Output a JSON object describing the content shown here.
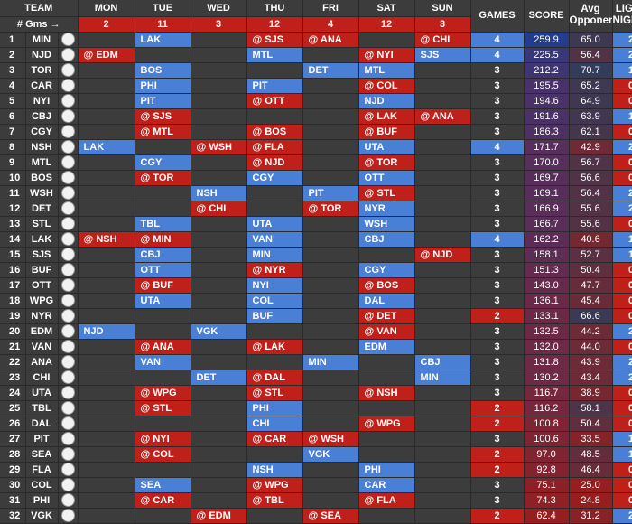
{
  "header": {
    "team_label": "TEAM",
    "gms_label": "# Gms →",
    "days": [
      {
        "label": "MON",
        "count": "2"
      },
      {
        "label": "TUE",
        "count": "11"
      },
      {
        "label": "WED",
        "count": "3"
      },
      {
        "label": "THU",
        "count": "12"
      },
      {
        "label": "FRI",
        "count": "4"
      },
      {
        "label": "SAT",
        "count": "12"
      },
      {
        "label": "SUN",
        "count": "3"
      }
    ],
    "games_label": "GAMES",
    "score_label": "SCORE",
    "avg_label_1": "Avg",
    "avg_label_2": "Opponent",
    "light_label_1": "LIGHT",
    "light_label_2": "NIGHTS"
  },
  "rows": [
    {
      "rank": "1",
      "team": "MIN",
      "games": [
        "",
        "LAK",
        "",
        "@ SJS",
        "@ ANA",
        "",
        "@ CHI"
      ],
      "gcount": "4",
      "score": "259.9",
      "opp": "65.0",
      "light": "2"
    },
    {
      "rank": "2",
      "team": "NJD",
      "games": [
        "@ EDM",
        "",
        "",
        "MTL",
        "",
        "@ NYI",
        "SJS"
      ],
      "gcount": "4",
      "score": "225.5",
      "opp": "56.4",
      "light": "2"
    },
    {
      "rank": "3",
      "team": "TOR",
      "games": [
        "",
        "BOS",
        "",
        "",
        "DET",
        "MTL",
        ""
      ],
      "gcount": "3",
      "score": "212.2",
      "opp": "70.7",
      "light": "1"
    },
    {
      "rank": "4",
      "team": "CAR",
      "games": [
        "",
        "PHI",
        "",
        "PIT",
        "",
        "@ COL",
        ""
      ],
      "gcount": "3",
      "score": "195.5",
      "opp": "65.2",
      "light": "0"
    },
    {
      "rank": "5",
      "team": "NYI",
      "games": [
        "",
        "PIT",
        "",
        "@ OTT",
        "",
        "NJD",
        ""
      ],
      "gcount": "3",
      "score": "194.6",
      "opp": "64.9",
      "light": "0"
    },
    {
      "rank": "6",
      "team": "CBJ",
      "games": [
        "",
        "@ SJS",
        "",
        "",
        "",
        "@ LAK",
        "@ ANA"
      ],
      "gcount": "3",
      "score": "191.6",
      "opp": "63.9",
      "light": "1"
    },
    {
      "rank": "7",
      "team": "CGY",
      "games": [
        "",
        "@ MTL",
        "",
        "@ BOS",
        "",
        "@ BUF",
        ""
      ],
      "gcount": "3",
      "score": "186.3",
      "opp": "62.1",
      "light": "0"
    },
    {
      "rank": "8",
      "team": "NSH",
      "games": [
        "LAK",
        "",
        "@ WSH",
        "@ FLA",
        "",
        "UTA",
        ""
      ],
      "gcount": "4",
      "score": "171.7",
      "opp": "42.9",
      "light": "2"
    },
    {
      "rank": "9",
      "team": "MTL",
      "games": [
        "",
        "CGY",
        "",
        "@ NJD",
        "",
        "@ TOR",
        ""
      ],
      "gcount": "3",
      "score": "170.0",
      "opp": "56.7",
      "light": "0"
    },
    {
      "rank": "10",
      "team": "BOS",
      "games": [
        "",
        "@ TOR",
        "",
        "CGY",
        "",
        "OTT",
        ""
      ],
      "gcount": "3",
      "score": "169.7",
      "opp": "56.6",
      "light": "0"
    },
    {
      "rank": "11",
      "team": "WSH",
      "games": [
        "",
        "",
        "NSH",
        "",
        "PIT",
        "@ STL",
        ""
      ],
      "gcount": "3",
      "score": "169.1",
      "opp": "56.4",
      "light": "2"
    },
    {
      "rank": "12",
      "team": "DET",
      "games": [
        "",
        "",
        "@ CHI",
        "",
        "@ TOR",
        "NYR",
        ""
      ],
      "gcount": "3",
      "score": "166.9",
      "opp": "55.6",
      "light": "2"
    },
    {
      "rank": "13",
      "team": "STL",
      "games": [
        "",
        "TBL",
        "",
        "UTA",
        "",
        "WSH",
        ""
      ],
      "gcount": "3",
      "score": "166.7",
      "opp": "55.6",
      "light": "0"
    },
    {
      "rank": "14",
      "team": "LAK",
      "games": [
        "@ NSH",
        "@ MIN",
        "",
        "VAN",
        "",
        "CBJ",
        ""
      ],
      "gcount": "4",
      "score": "162.2",
      "opp": "40.6",
      "light": "1"
    },
    {
      "rank": "15",
      "team": "SJS",
      "games": [
        "",
        "CBJ",
        "",
        "MIN",
        "",
        "",
        "@ NJD"
      ],
      "gcount": "3",
      "score": "158.1",
      "opp": "52.7",
      "light": "1"
    },
    {
      "rank": "16",
      "team": "BUF",
      "games": [
        "",
        "OTT",
        "",
        "@ NYR",
        "",
        "CGY",
        ""
      ],
      "gcount": "3",
      "score": "151.3",
      "opp": "50.4",
      "light": "0"
    },
    {
      "rank": "17",
      "team": "OTT",
      "games": [
        "",
        "@ BUF",
        "",
        "NYI",
        "",
        "@ BOS",
        ""
      ],
      "gcount": "3",
      "score": "143.0",
      "opp": "47.7",
      "light": "0"
    },
    {
      "rank": "18",
      "team": "WPG",
      "games": [
        "",
        "UTA",
        "",
        "COL",
        "",
        "DAL",
        ""
      ],
      "gcount": "3",
      "score": "136.1",
      "opp": "45.4",
      "light": "0"
    },
    {
      "rank": "19",
      "team": "NYR",
      "games": [
        "",
        "",
        "",
        "BUF",
        "",
        "@ DET",
        ""
      ],
      "gcount": "2",
      "score": "133.1",
      "opp": "66.6",
      "light": "0"
    },
    {
      "rank": "20",
      "team": "EDM",
      "games": [
        "NJD",
        "",
        "VGK",
        "",
        "",
        "@ VAN",
        ""
      ],
      "gcount": "3",
      "score": "132.5",
      "opp": "44.2",
      "light": "2"
    },
    {
      "rank": "21",
      "team": "VAN",
      "games": [
        "",
        "@ ANA",
        "",
        "@ LAK",
        "",
        "EDM",
        ""
      ],
      "gcount": "3",
      "score": "132.0",
      "opp": "44.0",
      "light": "0"
    },
    {
      "rank": "22",
      "team": "ANA",
      "games": [
        "",
        "VAN",
        "",
        "",
        "MIN",
        "",
        "CBJ"
      ],
      "gcount": "3",
      "score": "131.8",
      "opp": "43.9",
      "light": "2"
    },
    {
      "rank": "23",
      "team": "CHI",
      "games": [
        "",
        "",
        "DET",
        "@ DAL",
        "",
        "",
        "MIN"
      ],
      "gcount": "3",
      "score": "130.2",
      "opp": "43.4",
      "light": "2"
    },
    {
      "rank": "24",
      "team": "UTA",
      "games": [
        "",
        "@ WPG",
        "",
        "@ STL",
        "",
        "@ NSH",
        ""
      ],
      "gcount": "3",
      "score": "116.7",
      "opp": "38.9",
      "light": "0"
    },
    {
      "rank": "25",
      "team": "TBL",
      "games": [
        "",
        "@ STL",
        "",
        "PHI",
        "",
        "",
        ""
      ],
      "gcount": "2",
      "score": "116.2",
      "opp": "58.1",
      "light": "0"
    },
    {
      "rank": "26",
      "team": "DAL",
      "games": [
        "",
        "",
        "",
        "CHI",
        "",
        "@ WPG",
        ""
      ],
      "gcount": "2",
      "score": "100.8",
      "opp": "50.4",
      "light": "0"
    },
    {
      "rank": "27",
      "team": "PIT",
      "games": [
        "",
        "@ NYI",
        "",
        "@ CAR",
        "@ WSH",
        "",
        ""
      ],
      "gcount": "3",
      "score": "100.6",
      "opp": "33.5",
      "light": "1"
    },
    {
      "rank": "28",
      "team": "SEA",
      "games": [
        "",
        "@ COL",
        "",
        "",
        "VGK",
        "",
        ""
      ],
      "gcount": "2",
      "score": "97.0",
      "opp": "48.5",
      "light": "1"
    },
    {
      "rank": "29",
      "team": "FLA",
      "games": [
        "",
        "",
        "",
        "NSH",
        "",
        "PHI",
        ""
      ],
      "gcount": "2",
      "score": "92.8",
      "opp": "46.4",
      "light": "0"
    },
    {
      "rank": "30",
      "team": "COL",
      "games": [
        "",
        "SEA",
        "",
        "@ WPG",
        "",
        "CAR",
        ""
      ],
      "gcount": "3",
      "score": "75.1",
      "opp": "25.0",
      "light": "0"
    },
    {
      "rank": "31",
      "team": "PHI",
      "games": [
        "",
        "@ CAR",
        "",
        "@ TBL",
        "",
        "@ FLA",
        ""
      ],
      "gcount": "3",
      "score": "74.3",
      "opp": "24.8",
      "light": "0"
    },
    {
      "rank": "32",
      "team": "VGK",
      "games": [
        "",
        "",
        "@ EDM",
        "",
        "@ SEA",
        "",
        ""
      ],
      "gcount": "2",
      "score": "62.4",
      "opp": "31.2",
      "light": "2"
    }
  ],
  "colors": {
    "home": "#4a7fd6",
    "away": "#c0201a",
    "background": "#3c3c3c"
  }
}
